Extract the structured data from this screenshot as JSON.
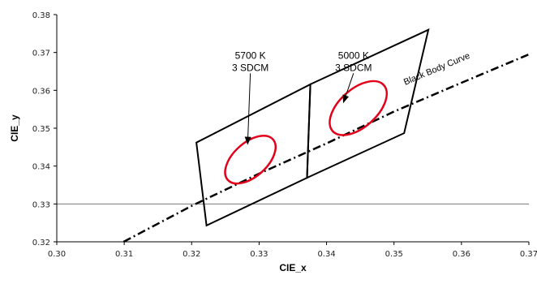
{
  "chart_data": {
    "type": "scatter",
    "xlabel": "CIE_x",
    "ylabel": "CIE_y",
    "xlim": [
      0.3,
      0.37
    ],
    "ylim": [
      0.32,
      0.38
    ],
    "x_ticks": [
      "0.30",
      "0.31",
      "0.32",
      "0.33",
      "0.34",
      "0.35",
      "0.36",
      "0.37"
    ],
    "y_ticks": [
      "0.32",
      "0.33",
      "0.34",
      "0.35",
      "0.36",
      "0.37",
      "0.38"
    ],
    "reference_line_y": 0.33,
    "quadrangles": [
      {
        "label_line1": "5700 K",
        "label_line2": "3 SDCM",
        "vertices": [
          [
            0.3207,
            0.3462
          ],
          [
            0.3376,
            0.3616
          ],
          [
            0.3371,
            0.3369
          ],
          [
            0.3222,
            0.3243
          ]
        ],
        "ellipse": {
          "center": [
            0.3287,
            0.3417
          ],
          "semi_axes": [
            0.0045,
            0.0025
          ],
          "angle_deg": 42
        },
        "arrow_from": [
          0.3287,
          0.3645
        ],
        "arrow_to": [
          0.3283,
          0.3458
        ]
      },
      {
        "label_line1": "5000 K",
        "label_line2": "3 SDCM",
        "vertices": [
          [
            0.3376,
            0.3616
          ],
          [
            0.3551,
            0.376
          ],
          [
            0.3515,
            0.3487
          ],
          [
            0.3371,
            0.3369
          ]
        ],
        "ellipse": {
          "center": [
            0.3447,
            0.3553
          ],
          "semi_axes": [
            0.0051,
            0.0028
          ],
          "angle_deg": 42
        },
        "arrow_from": [
          0.344,
          0.3645
        ],
        "arrow_to": [
          0.3425,
          0.3568
        ]
      }
    ],
    "black_body_curve": {
      "label": "Black Body Curve",
      "points": [
        [
          0.3099,
          0.32
        ],
        [
          0.32,
          0.3295
        ],
        [
          0.33,
          0.338
        ],
        [
          0.34,
          0.346
        ],
        [
          0.35,
          0.3544
        ],
        [
          0.36,
          0.362
        ],
        [
          0.37,
          0.3695
        ]
      ]
    },
    "colors": {
      "axis": "#000000",
      "quadrangle": "#000000",
      "ellipse": "#e3001b",
      "reference_line": "#7a7a7a",
      "curve": "#000000"
    }
  }
}
